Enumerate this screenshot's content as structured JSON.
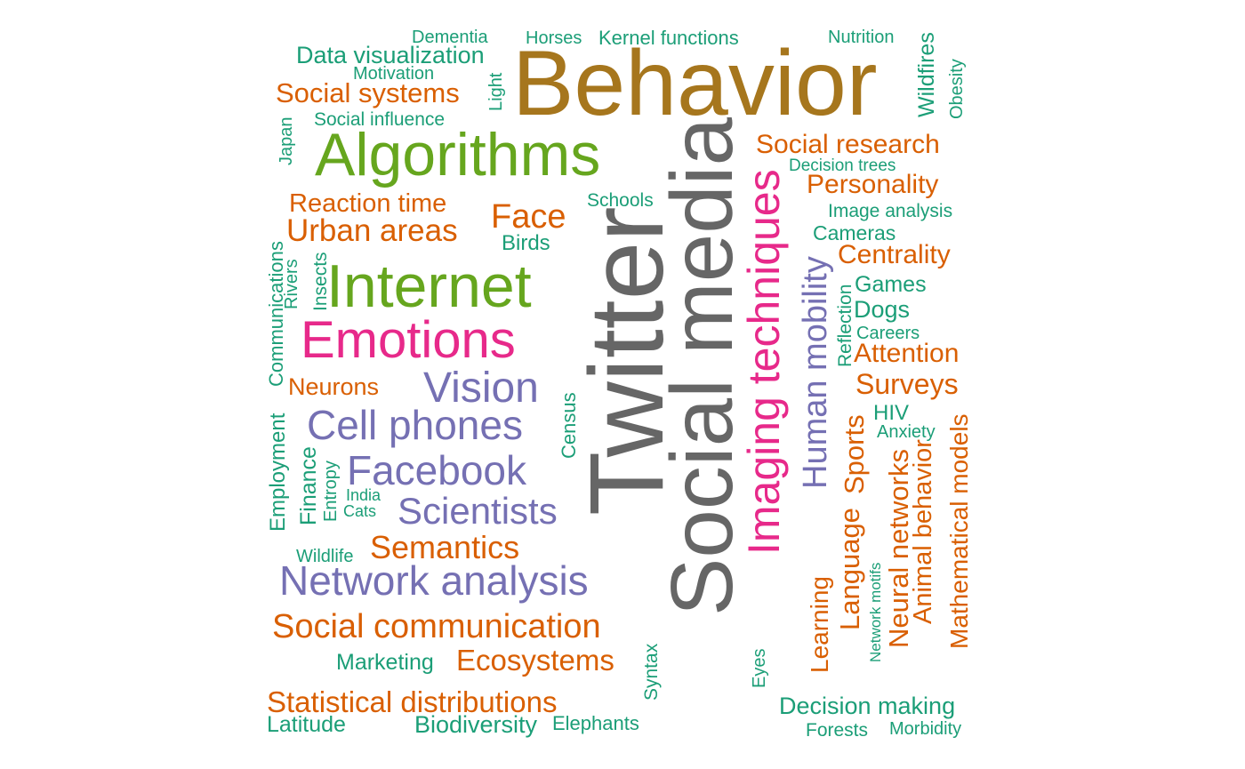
{
  "colors": {
    "gray": "#666666",
    "gold": "#A6761D",
    "green": "#66A61E",
    "pink": "#E7298A",
    "purple": "#7570B3",
    "orange": "#D95F02",
    "teal": "#1B9E77"
  },
  "words": [
    {
      "text": "Behavior",
      "color": "gold"
    },
    {
      "text": "Twitter",
      "color": "gray"
    },
    {
      "text": "Social media",
      "color": "gray"
    },
    {
      "text": "Algorithms",
      "color": "green"
    },
    {
      "text": "Internet",
      "color": "green"
    },
    {
      "text": "Emotions",
      "color": "pink"
    },
    {
      "text": "Imaging techniques",
      "color": "pink"
    },
    {
      "text": "Vision",
      "color": "purple"
    },
    {
      "text": "Cell phones",
      "color": "purple"
    },
    {
      "text": "Facebook",
      "color": "purple"
    },
    {
      "text": "Scientists",
      "color": "purple"
    },
    {
      "text": "Network analysis",
      "color": "purple"
    },
    {
      "text": "Human mobility",
      "color": "purple"
    },
    {
      "text": "Social communication",
      "color": "orange"
    },
    {
      "text": "Statistical distributions",
      "color": "orange"
    },
    {
      "text": "Semantics",
      "color": "orange"
    },
    {
      "text": "Ecosystems",
      "color": "orange"
    },
    {
      "text": "Urban areas",
      "color": "orange"
    },
    {
      "text": "Reaction time",
      "color": "orange"
    },
    {
      "text": "Face",
      "color": "orange"
    },
    {
      "text": "Social systems",
      "color": "orange"
    },
    {
      "text": "Social research",
      "color": "orange"
    },
    {
      "text": "Personality",
      "color": "orange"
    },
    {
      "text": "Centrality",
      "color": "orange"
    },
    {
      "text": "Attention",
      "color": "orange"
    },
    {
      "text": "Surveys",
      "color": "orange"
    },
    {
      "text": "Neurons",
      "color": "orange"
    },
    {
      "text": "Sports",
      "color": "orange"
    },
    {
      "text": "Language",
      "color": "orange"
    },
    {
      "text": "Learning",
      "color": "orange"
    },
    {
      "text": "Neural networks",
      "color": "orange"
    },
    {
      "text": "Animal behavior",
      "color": "orange"
    },
    {
      "text": "Mathematical models",
      "color": "orange"
    },
    {
      "text": "Data visualization",
      "color": "teal"
    },
    {
      "text": "Dementia",
      "color": "teal"
    },
    {
      "text": "Horses",
      "color": "teal"
    },
    {
      "text": "Kernel functions",
      "color": "teal"
    },
    {
      "text": "Nutrition",
      "color": "teal"
    },
    {
      "text": "Wildfires",
      "color": "teal"
    },
    {
      "text": "Obesity",
      "color": "teal"
    },
    {
      "text": "Motivation",
      "color": "teal"
    },
    {
      "text": "Light",
      "color": "teal"
    },
    {
      "text": "Social influence",
      "color": "teal"
    },
    {
      "text": "Japan",
      "color": "teal"
    },
    {
      "text": "Decision trees",
      "color": "teal"
    },
    {
      "text": "Schools",
      "color": "teal"
    },
    {
      "text": "Image analysis",
      "color": "teal"
    },
    {
      "text": "Birds",
      "color": "teal"
    },
    {
      "text": "Cameras",
      "color": "teal"
    },
    {
      "text": "Communications",
      "color": "teal"
    },
    {
      "text": "Rivers",
      "color": "teal"
    },
    {
      "text": "Insects",
      "color": "teal"
    },
    {
      "text": "Games",
      "color": "teal"
    },
    {
      "text": "Dogs",
      "color": "teal"
    },
    {
      "text": "Reflection",
      "color": "teal"
    },
    {
      "text": "Careers",
      "color": "teal"
    },
    {
      "text": "Census",
      "color": "teal"
    },
    {
      "text": "HIV",
      "color": "teal"
    },
    {
      "text": "Anxiety",
      "color": "teal"
    },
    {
      "text": "Employment",
      "color": "teal"
    },
    {
      "text": "Finance",
      "color": "teal"
    },
    {
      "text": "Entropy",
      "color": "teal"
    },
    {
      "text": "India",
      "color": "teal"
    },
    {
      "text": "Cats",
      "color": "teal"
    },
    {
      "text": "Wildlife",
      "color": "teal"
    },
    {
      "text": "Network motifs",
      "color": "teal"
    },
    {
      "text": "Marketing",
      "color": "teal"
    },
    {
      "text": "Syntax",
      "color": "teal"
    },
    {
      "text": "Eyes",
      "color": "teal"
    },
    {
      "text": "Decision making",
      "color": "teal"
    },
    {
      "text": "Latitude",
      "color": "teal"
    },
    {
      "text": "Biodiversity",
      "color": "teal"
    },
    {
      "text": "Elephants",
      "color": "teal"
    },
    {
      "text": "Forests",
      "color": "teal"
    },
    {
      "text": "Morbidity",
      "color": "teal"
    }
  ]
}
